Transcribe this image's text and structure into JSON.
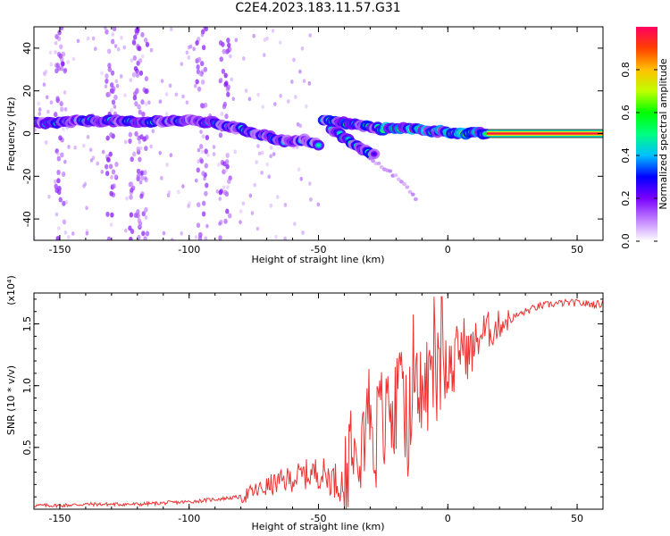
{
  "page": {
    "title": "C2E4.2023.183.11.57.G31"
  },
  "chart_data": [
    {
      "type": "heatmap",
      "title": "C2E4.2023.183.11.57.G31",
      "xlabel": "Height of straight line (km)",
      "ylabel": "Frequency (Hz)",
      "xlim": [
        -160,
        60
      ],
      "ylim": [
        -50,
        50
      ],
      "xticks": [
        -150,
        -100,
        -50,
        0,
        50
      ],
      "xtick_labels": [
        "-150",
        "-100",
        "-50",
        "0",
        "50"
      ],
      "yticks": [
        -40,
        -20,
        0,
        20,
        40
      ],
      "ytick_labels": [
        "-40",
        "-20",
        "0",
        "20",
        "40"
      ],
      "colorbar": {
        "label": "Normalized spectral amplitude",
        "range": [
          0.0,
          1.0
        ],
        "ticks": [
          0.0,
          0.2,
          0.4,
          0.6,
          0.8
        ],
        "tick_labels": [
          "0.0",
          "0.2",
          "0.4",
          "0.6",
          "0.8"
        ],
        "colormap": [
          "#ffffff",
          "#c080ff",
          "#7a00ff",
          "#0000ff",
          "#00c0ff",
          "#00ff80",
          "#00ff00",
          "#c0ff00",
          "#ffc000",
          "#ff4000",
          "#ff0060"
        ]
      },
      "ridges": [
        {
          "x": [
            -160,
            -150,
            -140,
            -130,
            -120,
            -110,
            -100,
            -90,
            -80,
            -70,
            -65,
            -60,
            -55,
            -50
          ],
          "y": [
            5,
            5,
            6,
            6,
            5,
            6,
            6,
            5,
            2,
            -1,
            -3,
            -4,
            -3,
            -5
          ]
        },
        {
          "x": [
            -48,
            -40,
            -35,
            -30,
            -25,
            -20,
            -15,
            -10,
            -5,
            0,
            5,
            10,
            15
          ],
          "y": [
            6,
            5,
            4,
            3,
            2,
            3,
            2,
            2,
            1,
            1,
            0,
            0,
            0
          ]
        },
        {
          "x": [
            -45,
            -40,
            -35,
            -30,
            -28
          ],
          "y": [
            2,
            -2,
            -6,
            -9,
            -10
          ]
        },
        {
          "x": [
            -30,
            -25,
            -20,
            -15,
            -12
          ],
          "y": [
            -12,
            -16,
            -20,
            -26,
            -31
          ]
        },
        {
          "x": [
            15,
            30,
            45,
            60
          ],
          "y": [
            0,
            0,
            0,
            0
          ]
        }
      ]
    },
    {
      "type": "line",
      "xlabel": "Height of straight line (km)",
      "ylabel": "SNR (10 * v/v)",
      "y_multiplier": "(x10⁴)",
      "xlim": [
        -160,
        60
      ],
      "ylim": [
        0,
        1.75
      ],
      "xticks": [
        -150,
        -100,
        -50,
        0,
        50
      ],
      "xtick_labels": [
        "-150",
        "-100",
        "-50",
        "0",
        "50"
      ],
      "yticks": [
        0.5,
        1.0,
        1.5
      ],
      "ytick_labels": [
        "0.5",
        "1.0",
        "1.5"
      ],
      "color": "#ee3333",
      "series": [
        {
          "x": [
            -160,
            -150,
            -140,
            -130,
            -120,
            -110,
            -100,
            -90,
            -80,
            -75,
            -70,
            -65,
            -60,
            -55,
            -50,
            -45,
            -40,
            -38,
            -36,
            -34,
            -32,
            -30,
            -28,
            -26,
            -24,
            -22,
            -20,
            -18,
            -16,
            -14,
            -12,
            -10,
            -8,
            -6,
            -4,
            -2,
            0,
            2,
            4,
            6,
            8,
            10,
            12,
            15,
            18,
            20,
            25,
            30,
            35,
            40,
            45,
            50,
            55,
            60
          ],
          "values": [
            0.03,
            0.03,
            0.04,
            0.04,
            0.04,
            0.05,
            0.06,
            0.08,
            0.1,
            0.14,
            0.18,
            0.22,
            0.25,
            0.28,
            0.3,
            0.25,
            0.2,
            0.55,
            0.75,
            0.6,
            0.7,
            0.85,
            0.55,
            0.75,
            0.65,
            0.8,
            0.7,
            0.9,
            0.65,
            0.85,
            0.9,
            0.95,
            1.0,
            1.05,
            1.1,
            1.2,
            1.25,
            1.1,
            1.3,
            1.35,
            1.25,
            1.3,
            1.4,
            1.45,
            1.45,
            1.5,
            1.55,
            1.6,
            1.64,
            1.66,
            1.67,
            1.67,
            1.66,
            1.66
          ]
        }
      ]
    }
  ]
}
